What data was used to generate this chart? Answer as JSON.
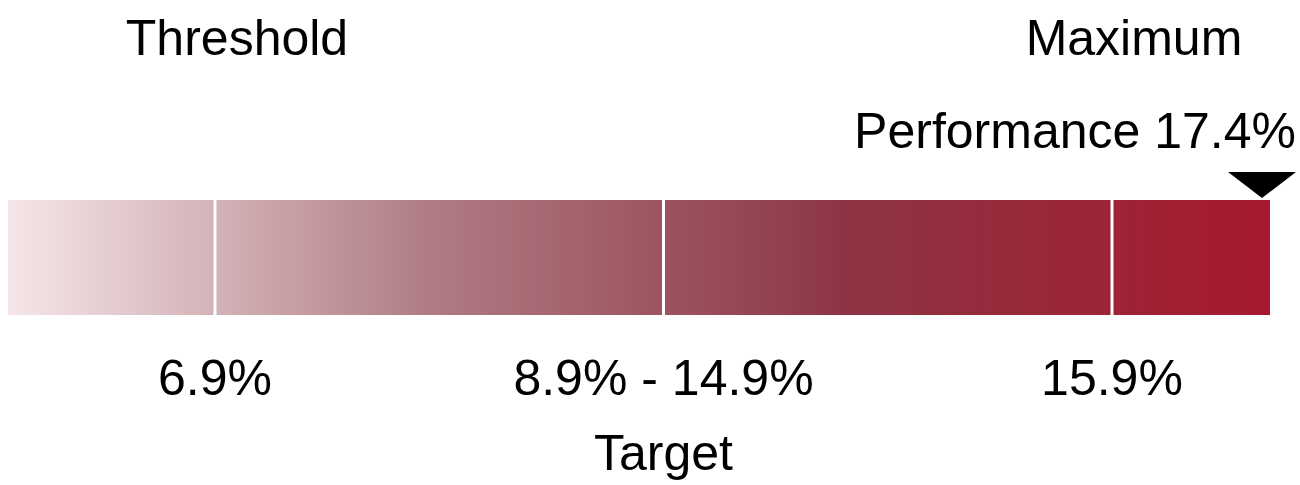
{
  "chart_data": {
    "type": "other",
    "categories": [
      "Threshold",
      "Target",
      "Maximum",
      "Performance"
    ],
    "values": [
      6.9,
      null,
      15.9,
      17.4
    ],
    "value_labels": [
      "6.9%",
      "8.9% - 14.9%",
      "15.9%",
      "17.4%"
    ],
    "colors": [
      "#f5e7e9",
      "#b07c84",
      "#8d3443",
      "#a6192e"
    ]
  }
}
